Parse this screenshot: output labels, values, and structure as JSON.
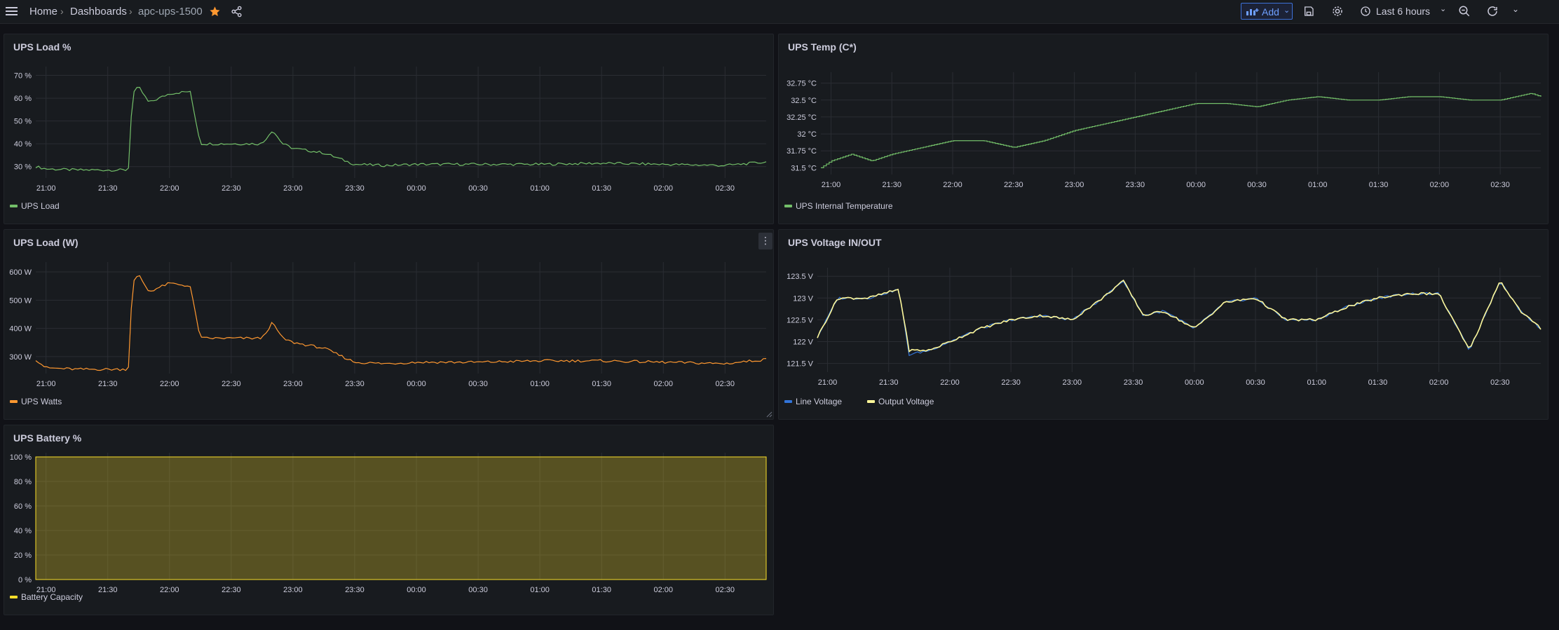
{
  "topbar": {
    "breadcrumb": [
      "Home",
      "Dashboards",
      "apc-ups-1500"
    ],
    "add_label": "Add",
    "time_range": "Last 6 hours"
  },
  "panels": {
    "ups_load_pct": {
      "title": "UPS Load %"
    },
    "ups_temp": {
      "title": "UPS Temp (C*)"
    },
    "ups_load_w": {
      "title": "UPS Load (W)"
    },
    "ups_voltage": {
      "title": "UPS Voltage IN/OUT"
    },
    "ups_battery": {
      "title": "UPS Battery %"
    }
  },
  "chart_data": [
    {
      "id": "ups_load_pct",
      "type": "line",
      "x": [
        "20:55",
        "21:00",
        "21:15",
        "21:30",
        "21:40",
        "21:42",
        "21:45",
        "21:50",
        "22:00",
        "22:10",
        "22:15",
        "22:30",
        "22:45",
        "22:50",
        "22:55",
        "23:00",
        "23:15",
        "23:30",
        "23:45",
        "00:00",
        "00:30",
        "01:00",
        "01:30",
        "02:00",
        "02:30",
        "02:50"
      ],
      "x_ticks": [
        "21:00",
        "21:30",
        "22:00",
        "22:30",
        "23:00",
        "23:30",
        "00:00",
        "00:30",
        "01:00",
        "01:30",
        "02:00",
        "02:30"
      ],
      "series": [
        {
          "name": "UPS Load",
          "color": "#73bf69",
          "values": [
            30,
            29,
            28.5,
            28.5,
            28.5,
            62,
            65,
            58,
            62,
            63,
            40,
            40,
            40,
            46,
            40,
            38,
            36,
            31,
            30.5,
            31,
            31,
            31,
            31.5,
            31,
            30.5,
            32
          ]
        }
      ],
      "ylim": [
        25,
        72
      ],
      "y_ticks": [
        30,
        40,
        50,
        60,
        70
      ],
      "y_tick_labels": [
        "30 %",
        "40 %",
        "50 %",
        "60 %",
        "70 %"
      ]
    },
    {
      "id": "ups_temp",
      "type": "line",
      "x": [
        "20:55",
        "21:00",
        "21:10",
        "21:20",
        "21:30",
        "21:45",
        "22:00",
        "22:15",
        "22:30",
        "22:45",
        "23:00",
        "23:15",
        "23:30",
        "23:45",
        "00:00",
        "00:15",
        "00:30",
        "00:45",
        "01:00",
        "01:15",
        "01:30",
        "01:45",
        "02:00",
        "02:15",
        "02:30",
        "02:45",
        "02:50"
      ],
      "x_ticks": [
        "21:00",
        "21:30",
        "22:00",
        "22:30",
        "23:00",
        "23:30",
        "00:00",
        "00:30",
        "01:00",
        "01:30",
        "02:00",
        "02:30"
      ],
      "series": [
        {
          "name": "UPS Internal Temperature",
          "color": "#73bf69",
          "values": [
            31.5,
            31.6,
            31.7,
            31.6,
            31.7,
            31.8,
            31.9,
            31.9,
            31.8,
            31.9,
            32.05,
            32.15,
            32.25,
            32.35,
            32.45,
            32.45,
            32.4,
            32.5,
            32.55,
            32.5,
            32.5,
            32.55,
            32.55,
            32.5,
            32.5,
            32.6,
            32.55
          ]
        }
      ],
      "ylim": [
        31.4,
        32.85
      ],
      "y_ticks": [
        31.5,
        31.75,
        32,
        32.25,
        32.5,
        32.75
      ],
      "y_tick_labels": [
        "31.5 °C",
        "31.75 °C",
        "32 °C",
        "32.25 °C",
        "32.5 °C",
        "32.75 °C"
      ]
    },
    {
      "id": "ups_load_w",
      "type": "line",
      "x": [
        "20:55",
        "21:00",
        "21:15",
        "21:30",
        "21:40",
        "21:42",
        "21:45",
        "21:50",
        "22:00",
        "22:10",
        "22:15",
        "22:30",
        "22:45",
        "22:50",
        "22:55",
        "23:00",
        "23:15",
        "23:30",
        "23:45",
        "00:00",
        "00:30",
        "01:00",
        "01:30",
        "02:00",
        "02:30",
        "02:50"
      ],
      "x_ticks": [
        "21:00",
        "21:30",
        "22:00",
        "22:30",
        "23:00",
        "23:30",
        "00:00",
        "00:30",
        "01:00",
        "01:30",
        "02:00",
        "02:30"
      ],
      "series": [
        {
          "name": "UPS Watts",
          "color": "#ff9830",
          "values": [
            290,
            260,
            255,
            255,
            255,
            560,
            590,
            530,
            560,
            550,
            365,
            365,
            365,
            420,
            365,
            350,
            330,
            280,
            275,
            280,
            280,
            285,
            285,
            280,
            275,
            290
          ]
        }
      ],
      "ylim": [
        240,
        620
      ],
      "y_ticks": [
        300,
        400,
        500,
        600
      ],
      "y_tick_labels": [
        "300 W",
        "400 W",
        "500 W",
        "600 W"
      ]
    },
    {
      "id": "ups_voltage",
      "type": "line",
      "x": [
        "20:55",
        "21:05",
        "21:20",
        "21:35",
        "21:40",
        "21:50",
        "22:00",
        "22:15",
        "22:30",
        "22:45",
        "23:00",
        "23:15",
        "23:25",
        "23:35",
        "23:45",
        "00:00",
        "00:15",
        "00:30",
        "00:45",
        "01:00",
        "01:15",
        "01:30",
        "01:45",
        "02:00",
        "02:15",
        "02:30",
        "02:40",
        "02:50"
      ],
      "x_ticks": [
        "21:00",
        "21:30",
        "22:00",
        "22:30",
        "23:00",
        "23:30",
        "00:00",
        "00:30",
        "01:00",
        "01:30",
        "02:00",
        "02:30"
      ],
      "series": [
        {
          "name": "Line Voltage",
          "color": "#3274d9",
          "values": [
            122.1,
            123,
            123,
            123.2,
            121.7,
            121.8,
            122,
            122.3,
            122.5,
            122.6,
            122.5,
            123,
            123.4,
            122.6,
            122.7,
            122.3,
            122.9,
            123,
            122.5,
            122.5,
            122.8,
            123,
            123.1,
            123.1,
            121.8,
            123.4,
            122.7,
            122.3
          ]
        },
        {
          "name": "Output Voltage",
          "color": "#fff899",
          "values": [
            122.1,
            123,
            123,
            123.2,
            121.8,
            121.8,
            122,
            122.3,
            122.5,
            122.6,
            122.5,
            123,
            123.4,
            122.6,
            122.7,
            122.3,
            122.9,
            123,
            122.5,
            122.5,
            122.8,
            123,
            123.1,
            123.1,
            121.8,
            123.4,
            122.7,
            122.3
          ]
        }
      ],
      "ylim": [
        121.3,
        123.6
      ],
      "y_ticks": [
        121.5,
        122,
        122.5,
        123,
        123.5
      ],
      "y_tick_labels": [
        "121.5 V",
        "122 V",
        "122.5 V",
        "123 V",
        "123.5 V"
      ]
    },
    {
      "id": "ups_battery",
      "type": "area",
      "x": [
        "20:55",
        "02:50"
      ],
      "x_ticks": [
        "21:00",
        "21:30",
        "22:00",
        "22:30",
        "23:00",
        "23:30",
        "00:00",
        "00:30",
        "01:00",
        "01:30",
        "02:00",
        "02:30"
      ],
      "series": [
        {
          "name": "Battery Capacity",
          "color": "#fade2a",
          "values": [
            100,
            100
          ]
        }
      ],
      "ylim": [
        0,
        100
      ],
      "y_ticks": [
        0,
        20,
        40,
        60,
        80,
        100
      ],
      "y_tick_labels": [
        "0 %",
        "20 %",
        "40 %",
        "60 %",
        "80 %",
        "100 %"
      ]
    }
  ]
}
